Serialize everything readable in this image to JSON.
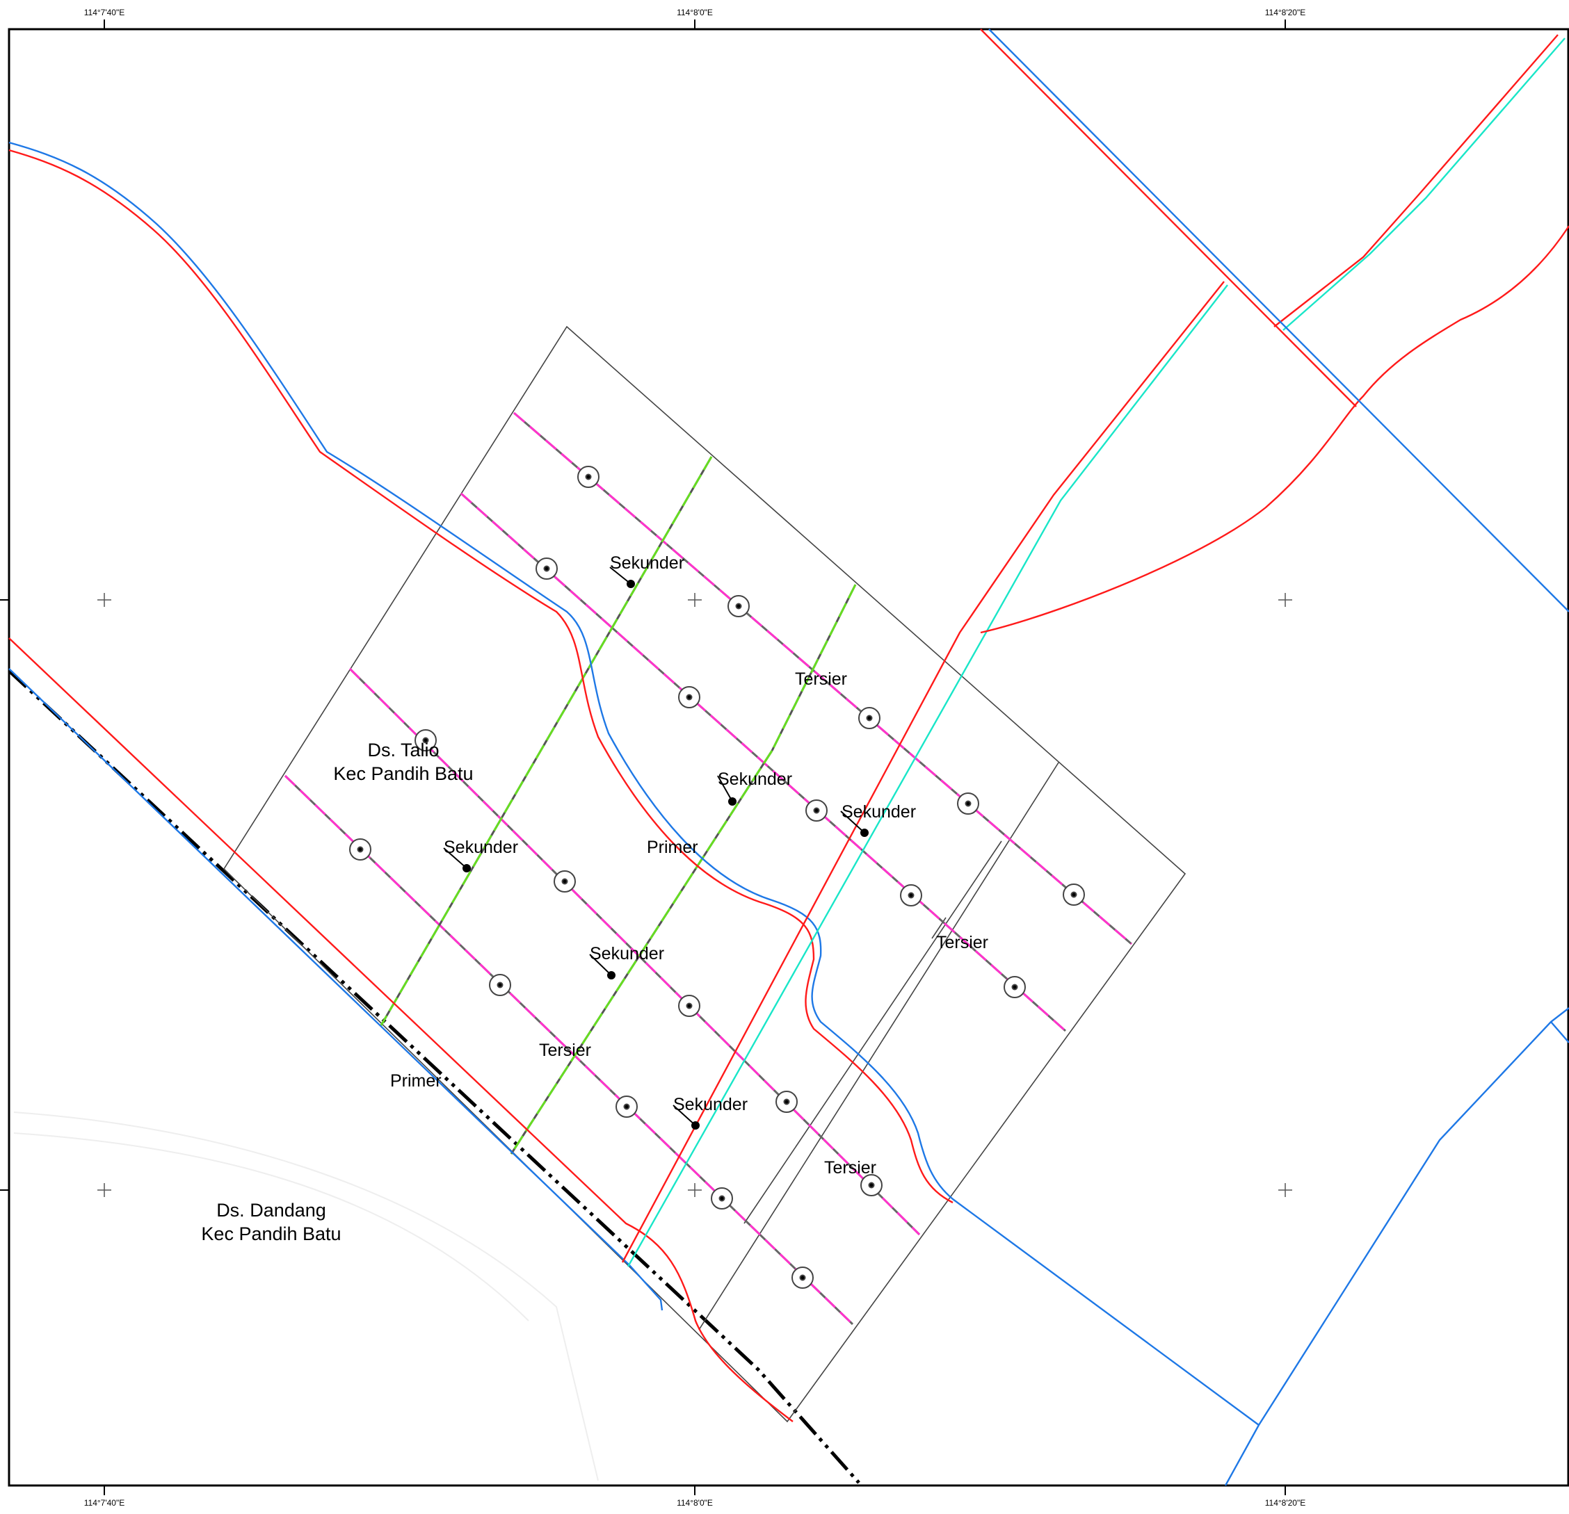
{
  "coordinates": {
    "top": [
      "114°7'40\"E",
      "114°8'0\"E",
      "114°8'20\"E"
    ],
    "bottom": [
      "114°7'40\"E",
      "114°8'0\"E",
      "114°8'20\"E"
    ]
  },
  "places": {
    "talio": {
      "line1": "Ds. Talio",
      "line2": "Kec Pandih Batu"
    },
    "dandang": {
      "line1": "Ds. Dandang",
      "line2": "Kec Pandih Batu"
    }
  },
  "labels": {
    "sekunder": [
      "Sekunder",
      "Sekunder",
      "Sekunder",
      "Sekunder",
      "Sekunder",
      "Sekunder"
    ],
    "tersier": [
      "Tersier",
      "Tersier",
      "Tersier",
      "Tersier"
    ],
    "primer": [
      "Primer",
      "Primer"
    ]
  },
  "colors": {
    "road_blue": "#1e78e6",
    "river_red": "#ff1a1a",
    "canal_cyan": "#19e6c8",
    "tertiary_magenta": "#ff33cc",
    "secondary_green": "#66dd22",
    "grid_black": "#333333"
  }
}
